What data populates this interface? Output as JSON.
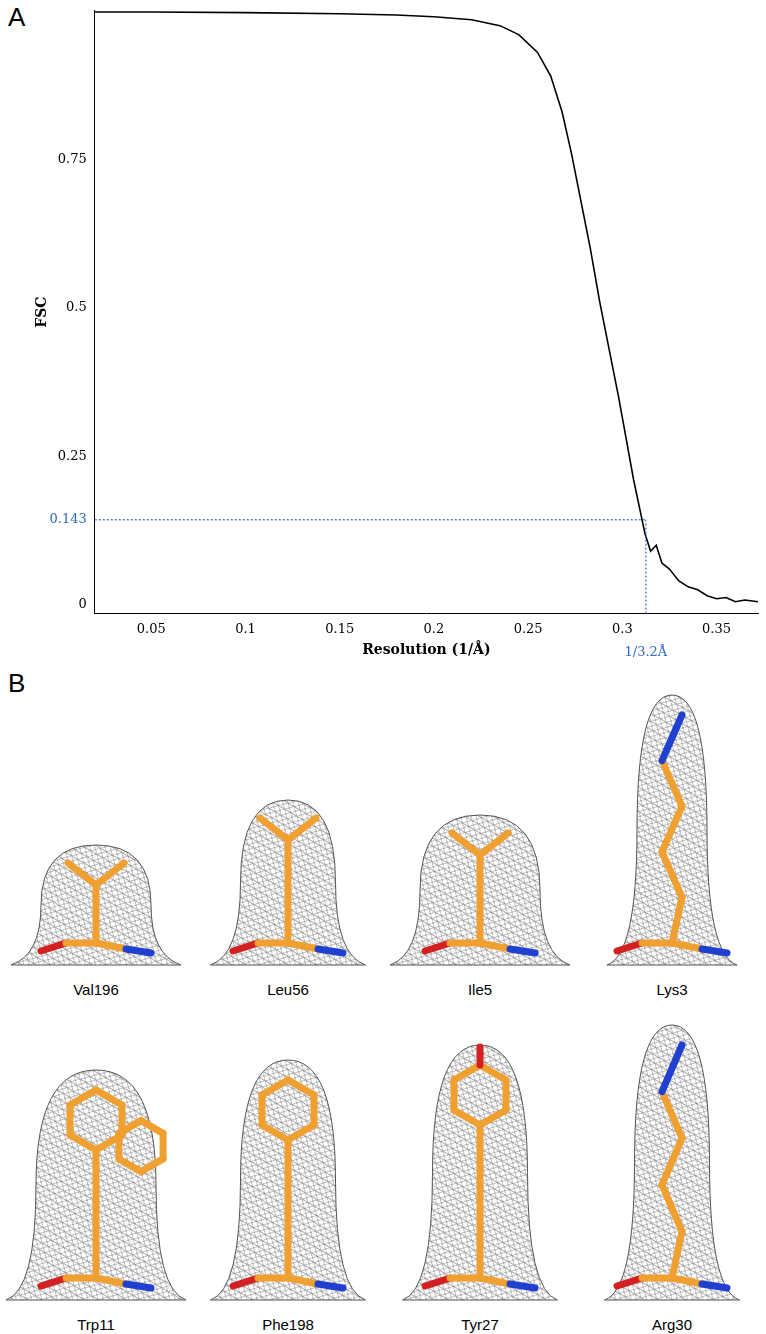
{
  "panel_labels": [
    "A",
    "B"
  ],
  "chart_data": {
    "type": "line",
    "x": [
      0.02,
      0.05,
      0.1,
      0.15,
      0.18,
      0.2,
      0.22,
      0.235,
      0.245,
      0.255,
      0.262,
      0.268,
      0.273,
      0.278,
      0.283,
      0.288,
      0.293,
      0.298,
      0.302,
      0.306,
      0.31,
      0.312,
      0.315,
      0.318,
      0.321,
      0.325,
      0.33,
      0.335,
      0.34,
      0.345,
      0.35,
      0.355,
      0.36,
      0.365,
      0.372
    ],
    "values": [
      0.998,
      0.998,
      0.997,
      0.995,
      0.993,
      0.99,
      0.985,
      0.975,
      0.96,
      0.93,
      0.89,
      0.83,
      0.76,
      0.68,
      0.6,
      0.51,
      0.43,
      0.35,
      0.28,
      0.21,
      0.15,
      0.12,
      0.09,
      0.1,
      0.07,
      0.06,
      0.04,
      0.03,
      0.025,
      0.015,
      0.01,
      0.012,
      0.005,
      0.008,
      0.005
    ],
    "color": "#000000",
    "xlabel": "Resolution (1/Å)",
    "ylabel": "FSC",
    "xlim": [
      0.02,
      0.372
    ],
    "ylim": [
      -0.015,
      1.0
    ],
    "xticks": [
      0.05,
      0.1,
      0.15,
      0.2,
      0.25,
      0.3,
      0.35
    ],
    "yticks": [
      0,
      0.25,
      0.5,
      0.75
    ],
    "grid": false,
    "annotations": [
      {
        "text": "0.143",
        "y": 0.143,
        "color": "#2e6bbf"
      },
      {
        "text": "1/3.2Å",
        "x": 0.3125,
        "color": "#2e6bbf"
      }
    ]
  },
  "residues": [
    "Val196",
    "Leu56",
    "Ile5",
    "Lys3",
    "Trp11",
    "Phe198",
    "Tyr27",
    "Arg30"
  ]
}
